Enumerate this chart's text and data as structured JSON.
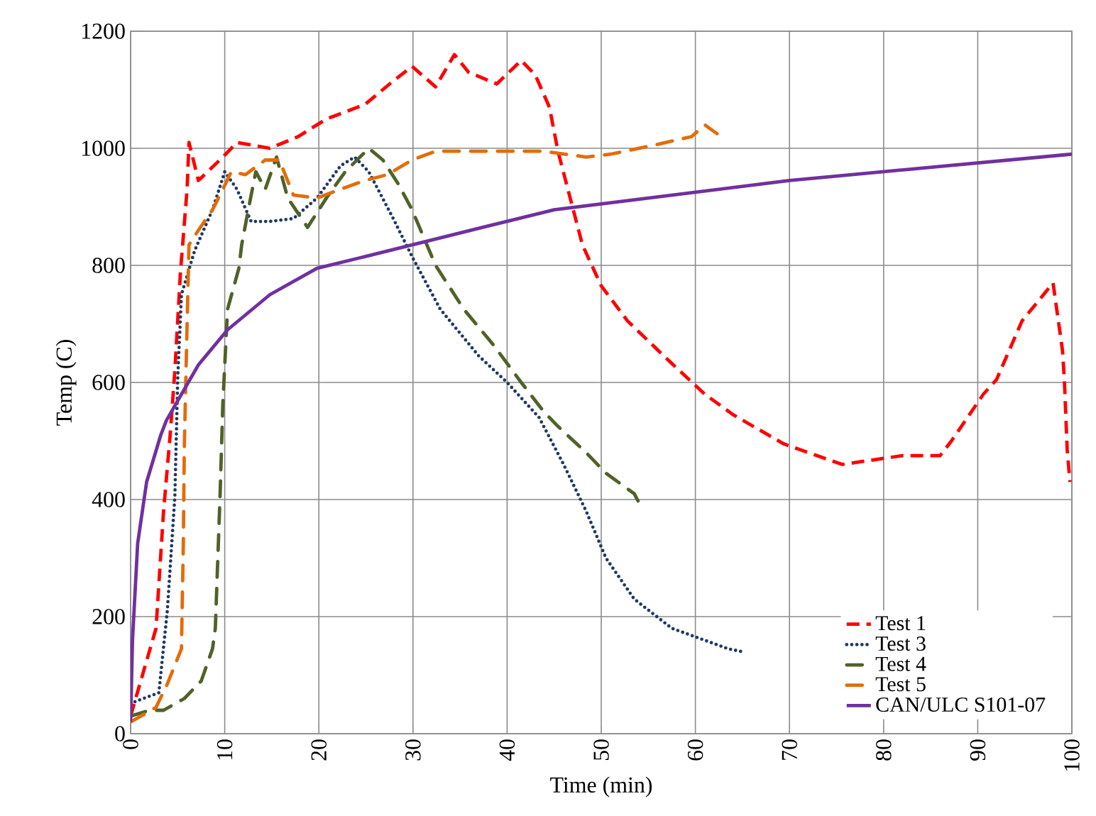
{
  "chart_data": {
    "type": "line",
    "xlabel": "Time (min)",
    "ylabel": "Temp (C)",
    "xlim": [
      0,
      100
    ],
    "ylim": [
      0,
      1200
    ],
    "xticks": [
      0,
      10,
      20,
      30,
      40,
      50,
      60,
      70,
      80,
      90,
      100
    ],
    "yticks": [
      0,
      200,
      400,
      600,
      800,
      1000,
      1200
    ],
    "grid": true,
    "legend": "bottom right",
    "marker": "none",
    "series": [
      {
        "name": "Test 1",
        "color": "#ff0000",
        "line_style": "dashed",
        "x": [
          0,
          0.5,
          2.7,
          3.5,
          4.2,
          4.7,
          5.3,
          6,
          6.2,
          7.2,
          9.8,
          11.3,
          14.8,
          17.8,
          20.8,
          24.9,
          27.9,
          29.9,
          32.4,
          34.4,
          35.9,
          38.9,
          41.5,
          43,
          44.5,
          45.4,
          48,
          50,
          52.8,
          57,
          61,
          64,
          69.4,
          75.6,
          82,
          86,
          87.2,
          90.6,
          92,
          94.7,
          98,
          99,
          99.2,
          99.5,
          99.8
        ],
        "values": [
          30,
          58,
          180,
          380,
          510,
          620,
          790,
          930,
          1010,
          945,
          985,
          1010,
          1000,
          1020,
          1050,
          1075,
          1115,
          1140,
          1105,
          1160,
          1130,
          1110,
          1150,
          1125,
          1070,
          995,
          835,
          765,
          705,
          640,
          580,
          545,
          495,
          460,
          475,
          475,
          500,
          580,
          605,
          705,
          770,
          655,
          605,
          485,
          430
        ]
      },
      {
        "name": "Test 3",
        "color": "#1f3864",
        "line_style": "dotted",
        "x": [
          0,
          0.5,
          3,
          3.9,
          4.7,
          5,
          5.4,
          6.8,
          8.7,
          10,
          11.3,
          12.8,
          14.8,
          17.3,
          19.8,
          22.3,
          23.8,
          25.3,
          27.9,
          29.9,
          32.9,
          37,
          40,
          43.4,
          46,
          48.4,
          50.5,
          53.5,
          57.5,
          63.5,
          65
        ],
        "values": [
          50,
          55,
          70,
          210,
          405,
          605,
          750,
          825,
          895,
          960,
          930,
          875,
          875,
          880,
          915,
          970,
          985,
          960,
          880,
          815,
          725,
          645,
          600,
          540,
          460,
          380,
          300,
          230,
          180,
          145,
          140
        ]
      },
      {
        "name": "Test 4",
        "color": "#4f6228",
        "line_style": "dashdot",
        "x": [
          0,
          2,
          3.5,
          5.7,
          7.5,
          8.7,
          9,
          9.5,
          9.8,
          10.3,
          11.5,
          11.8,
          12.5,
          13.3,
          14.3,
          15.5,
          16.7,
          18.8,
          20.8,
          22.8,
          25.3,
          26.8,
          28.4,
          29.9,
          32.4,
          35.4,
          38.5,
          41.5,
          43.9,
          45.4,
          48.4,
          50.5,
          53.5,
          54
        ],
        "values": [
          30,
          40,
          40,
          60,
          90,
          145,
          180,
          405,
          565,
          725,
          795,
          835,
          895,
          960,
          930,
          985,
          915,
          865,
          915,
          960,
          1000,
          980,
          940,
          895,
          800,
          725,
          665,
          600,
          550,
          525,
          480,
          445,
          410,
          395
        ]
      },
      {
        "name": "Test 5",
        "color": "#e36c09",
        "line_style": "dashdot",
        "x": [
          0,
          2.7,
          3.9,
          5.4,
          5.6,
          5.7,
          6,
          6.2,
          7.2,
          8.7,
          9.8,
          10.7,
          12.2,
          14.3,
          15.8,
          17.3,
          19.8,
          22.3,
          24.9,
          27.3,
          29.9,
          32.4,
          37.4,
          43.9,
          48.4,
          51,
          55.5,
          59.6,
          61,
          62.3
        ],
        "values": [
          20,
          45,
          85,
          145,
          325,
          485,
          700,
          835,
          860,
          895,
          930,
          960,
          955,
          980,
          980,
          920,
          915,
          930,
          945,
          955,
          980,
          995,
          995,
          995,
          985,
          990,
          1005,
          1020,
          1040,
          1025
        ]
      },
      {
        "name": "CAN/ULC S101-07",
        "color": "#7030a0",
        "line_style": "solid",
        "x": [
          0,
          0.2,
          0.75,
          1.7,
          3.2,
          3.8,
          7.2,
          10.3,
          14.8,
          19.8,
          24.9,
          29.9,
          37.4,
          45,
          50,
          60,
          70,
          80,
          90,
          100
        ],
        "values": [
          20,
          160,
          325,
          430,
          510,
          535,
          630,
          690,
          750,
          795,
          815,
          835,
          865,
          895,
          905,
          925,
          945,
          960,
          975,
          990
        ]
      }
    ]
  }
}
